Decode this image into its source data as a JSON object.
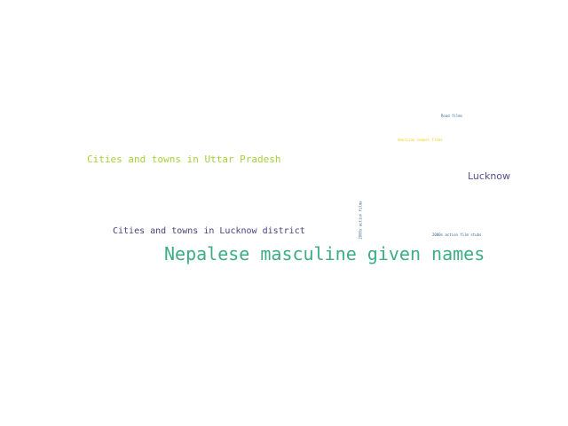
{
  "words": [
    {
      "text": "Nepalese masculine given names",
      "color": "#3dac87"
    },
    {
      "text": "Cities and towns in Uttar Pradesh",
      "color": "#a6cf3a"
    },
    {
      "text": "Cities and towns in Lucknow district",
      "color": "#4b3f80"
    },
    {
      "text": "Lucknow",
      "color": "#54508c"
    },
    {
      "text": "2000s action films",
      "color": "#3d6b8f"
    },
    {
      "text": "American sequel films",
      "color": "#f2d21a"
    },
    {
      "text": "Road films",
      "color": "#3b6c96"
    },
    {
      "text": "2000s action film stubs",
      "color": "#3b5f8f"
    }
  ]
}
